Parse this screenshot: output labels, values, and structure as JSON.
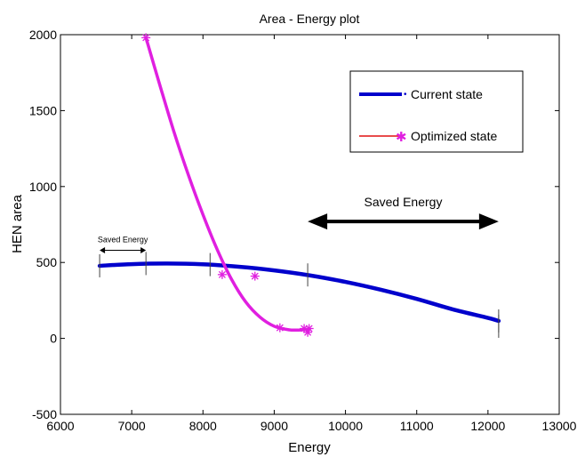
{
  "chart_data": {
    "type": "line",
    "title": "Area - Energy plot",
    "xlabel": "Energy",
    "ylabel": "HEN area",
    "xlim": [
      6000,
      13000
    ],
    "ylim": [
      -500,
      2000
    ],
    "xticks": [
      6000,
      7000,
      8000,
      9000,
      10000,
      11000,
      12000,
      13000
    ],
    "yticks": [
      -500,
      0,
      500,
      1000,
      1500,
      2000
    ],
    "xtick_labels": [
      "6000",
      "7000",
      "8000",
      "9000",
      "10000",
      "11000",
      "12000",
      "13000"
    ],
    "ytick_labels": [
      "-500",
      "0",
      "500",
      "1000",
      "1500",
      "2000"
    ],
    "grid": false,
    "legend_position": "top-right",
    "series": [
      {
        "name": "Current state",
        "color": "#0000cc",
        "curve": {
          "x": [
            6550,
            7000,
            7500,
            8000,
            8500,
            9000,
            9500,
            10000,
            10500,
            11000,
            11500,
            12000,
            12150
          ],
          "y": [
            478,
            489,
            493,
            488,
            472,
            448,
            415,
            372,
            320,
            260,
            192,
            135,
            115
          ]
        },
        "points": {
          "x": [
            6550,
            7200,
            8100,
            9470,
            12150,
            12150
          ],
          "y": [
            478,
            493,
            486,
            418,
            115,
            80
          ]
        }
      },
      {
        "name": "Optimized state",
        "color": "#e01fe0",
        "curve": {
          "x": [
            7200,
            7400,
            7600,
            7800,
            8000,
            8200,
            8400,
            8600,
            8800,
            9000,
            9200,
            9350,
            9480
          ],
          "y": [
            1980,
            1660,
            1350,
            1070,
            815,
            585,
            390,
            240,
            140,
            80,
            57,
            55,
            60
          ]
        },
        "points": {
          "x": [
            7200,
            8270,
            8730,
            9080,
            9420,
            9490,
            9470
          ],
          "y": [
            1980,
            420,
            410,
            70,
            65,
            65,
            40
          ]
        }
      }
    ],
    "annotations": [
      {
        "text": "Saved Energy",
        "x_from": 6550,
        "x_to": 7200,
        "y": 580,
        "size": "small"
      },
      {
        "text": "Saved Energy",
        "x_from": 9470,
        "x_to": 12150,
        "y": 770,
        "size": "large"
      }
    ]
  }
}
